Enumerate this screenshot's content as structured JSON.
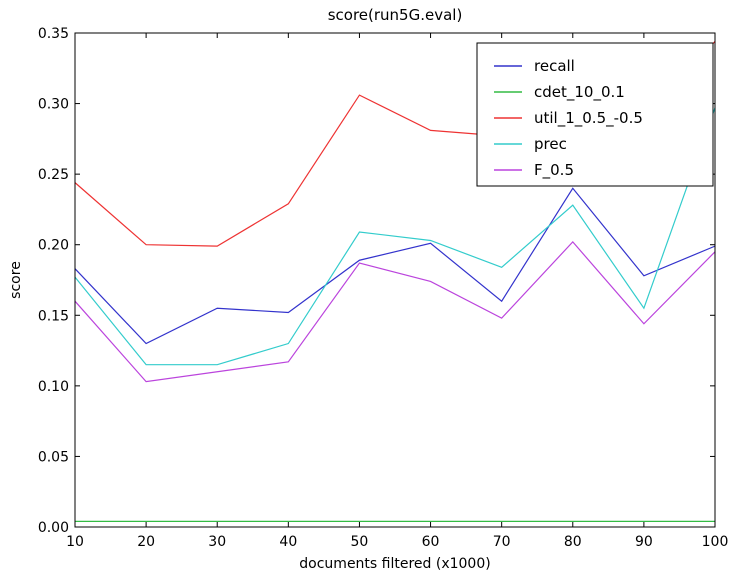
{
  "chart_data": {
    "type": "line",
    "title": "score(run5G.eval)",
    "xlabel": "documents filtered (x1000)",
    "ylabel": "score",
    "x": [
      10,
      20,
      30,
      40,
      50,
      60,
      70,
      80,
      90,
      100
    ],
    "xlim": [
      10,
      100
    ],
    "ylim": [
      0.0,
      0.35
    ],
    "xticks": [
      "10",
      "20",
      "30",
      "40",
      "50",
      "60",
      "70",
      "80",
      "90",
      "100"
    ],
    "yticks": [
      "0.00",
      "0.05",
      "0.10",
      "0.15",
      "0.20",
      "0.25",
      "0.30",
      "0.35"
    ],
    "grid": false,
    "legend_position": "top-right",
    "series": [
      {
        "name": "recall",
        "color": "#3333cc",
        "values": [
          0.183,
          0.13,
          0.155,
          0.152,
          0.189,
          0.201,
          0.16,
          0.24,
          0.178,
          0.199
        ]
      },
      {
        "name": "cdet_10_0.1",
        "color": "#33bb44",
        "values": [
          0.004,
          0.004,
          0.004,
          0.004,
          0.004,
          0.004,
          0.004,
          0.004,
          0.004,
          0.004
        ]
      },
      {
        "name": "util_1_0.5_-0.5",
        "color": "#ee3333",
        "values": [
          0.244,
          0.2,
          0.199,
          0.229,
          0.306,
          0.281,
          0.277,
          0.3,
          0.29,
          0.344
        ]
      },
      {
        "name": "prec",
        "color": "#33cccc",
        "values": [
          0.177,
          0.115,
          0.115,
          0.13,
          0.209,
          0.203,
          0.184,
          0.228,
          0.155,
          0.297
        ]
      },
      {
        "name": "F_0.5",
        "color": "#bb44dd",
        "values": [
          0.16,
          0.103,
          0.11,
          0.117,
          0.187,
          0.174,
          0.148,
          0.202,
          0.144,
          0.195
        ]
      }
    ]
  }
}
